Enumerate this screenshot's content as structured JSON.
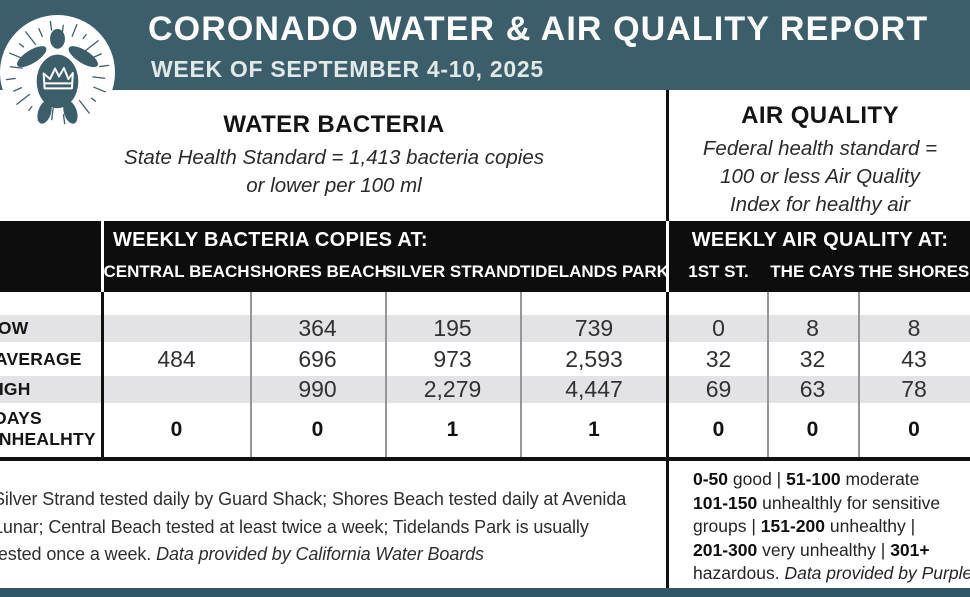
{
  "header": {
    "title": "CORONADO WATER & AIR QUALITY REPORT",
    "week": "WEEK OF SEPTEMBER 4-10, 2025"
  },
  "logo": {
    "icon": "sea-turtle-with-crown-logo"
  },
  "water_section": {
    "heading": "WATER BACTERIA",
    "standard": "State Health Standard = 1,413 bacteria copies\nor lower per 100 ml"
  },
  "air_section": {
    "heading": "AIR QUALITY",
    "standard": "Federal health standard =\n100 or less Air Quality\nIndex for healthy air"
  },
  "table": {
    "water_group_heading": "WEEKLY BACTERIA COPIES AT:",
    "air_group_heading": "WEEKLY AIR QUALITY AT:",
    "water_columns": [
      "CENTRAL BEACH",
      "SHORES BEACH",
      "SILVER STRAND",
      "TIDELANDS PARK"
    ],
    "air_columns": [
      "1ST ST.",
      "THE CAYS",
      "THE SHORES"
    ],
    "rows": [
      {
        "label": "LOW",
        "water": [
          "",
          "364",
          "195",
          "739"
        ],
        "air": [
          "0",
          "8",
          "8"
        ]
      },
      {
        "label": "AVERAGE",
        "water": [
          "484",
          "696",
          "973",
          "2,593"
        ],
        "air": [
          "32",
          "32",
          "43"
        ]
      },
      {
        "label": "HIGH",
        "water": [
          "",
          "990",
          "2,279",
          "4,447"
        ],
        "air": [
          "69",
          "63",
          "78"
        ]
      },
      {
        "label": "DAYS UNHEALHTY",
        "label_lines": [
          "DAYS",
          "UNHEALHTY"
        ],
        "water": [
          "0",
          "0",
          "1",
          "1"
        ],
        "air": [
          "0",
          "0",
          "0"
        ]
      }
    ]
  },
  "footnotes": {
    "water": {
      "line1": "Silver Strand tested daily by Guard Shack; Shores Beach tested daily at Avenida",
      "line2": "Lunar; Central Beach tested at least twice a week; Tidelands Park is usually",
      "line3_regular": "tested once a week. ",
      "line3_italic": "Data provided by California Water Boards"
    },
    "air_legend": {
      "line1": [
        {
          "t": "0-50"
        },
        {
          "t": " good | "
        },
        {
          "t": "51-100"
        },
        {
          "t": " moderate"
        }
      ],
      "line2": [
        {
          "t": "101-150"
        },
        {
          "t": " unhealthly for sensitive"
        }
      ],
      "line3": [
        {
          "t": "groups | "
        },
        {
          "t": "151-200"
        },
        {
          "t": " unhealthy |"
        }
      ],
      "line4": [
        {
          "t": "201-300"
        },
        {
          "t": " very unhealthy | "
        },
        {
          "t": "301+"
        }
      ],
      "line5_regular": "hazardous. ",
      "line5_italic": "Data provided by Purple Air"
    }
  },
  "colors": {
    "header_teal": "#3c5e6b",
    "bottom_bar_teal": "#2f5767",
    "band_black": "#0d0d0d",
    "row_stripe_gray": "#e3e3e6",
    "text_dark": "#141414"
  }
}
